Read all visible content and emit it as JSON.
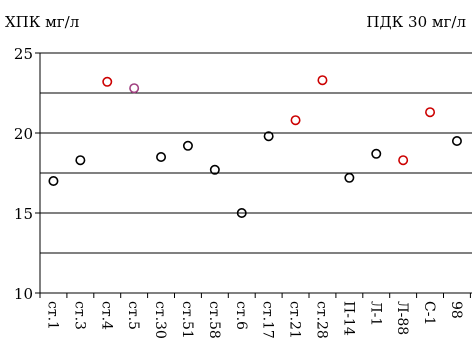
{
  "chart_data": {
    "type": "scatter",
    "ylabel": "ХПК мг/л",
    "annotation": "ПДК 30 мг/л",
    "ylim": [
      10,
      25
    ],
    "yticks": [
      10,
      15,
      20,
      25
    ],
    "gridlines": [
      12.5,
      15,
      17.5,
      20,
      22.5,
      25
    ],
    "categories": [
      "ст.1",
      "ст.3",
      "ст.4",
      "ст.5",
      "ст.30",
      "ст.51",
      "ст.58",
      "ст.6",
      "ст.17",
      "ст.21",
      "ст.28",
      "П-14",
      "Л-1",
      "Л-88",
      "С-1",
      "98"
    ],
    "values": [
      17.0,
      18.3,
      23.2,
      22.8,
      18.5,
      19.2,
      17.7,
      15.0,
      19.8,
      20.8,
      23.3,
      17.2,
      18.7,
      18.3,
      21.3,
      19.5
    ],
    "marker_colors": [
      "#000000",
      "#000000",
      "#cc0000",
      "#a04080",
      "#000000",
      "#000000",
      "#000000",
      "#000000",
      "#000000",
      "#cc0000",
      "#cc0000",
      "#000000",
      "#000000",
      "#cc0000",
      "#cc0000",
      "#000000"
    ],
    "grid": true,
    "legend": "none"
  }
}
